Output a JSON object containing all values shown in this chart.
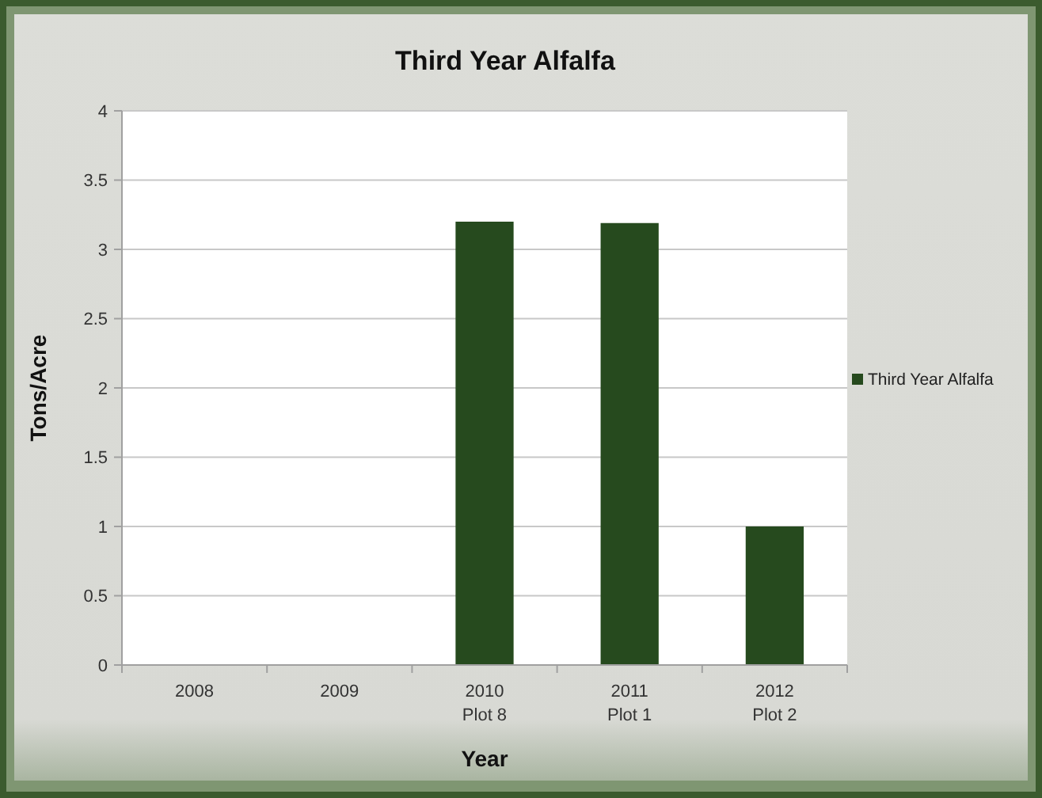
{
  "chart_data": {
    "type": "bar",
    "title": "Third Year Alfalfa",
    "xlabel": "Year",
    "ylabel": "Tons/Acre",
    "categories": [
      "2008",
      "2009",
      "2010\nPlot 8",
      "2011\nPlot 1",
      "2012\nPlot 2"
    ],
    "series": [
      {
        "name": "Third Year Alfalfa",
        "color": "#264a1e",
        "values": [
          null,
          null,
          3.2,
          3.19,
          1.0
        ]
      }
    ],
    "ylim": [
      0,
      4
    ],
    "yticks": [
      0,
      0.5,
      1,
      1.5,
      2,
      2.5,
      3,
      3.5,
      4
    ],
    "grid": "y",
    "legend": "right"
  }
}
